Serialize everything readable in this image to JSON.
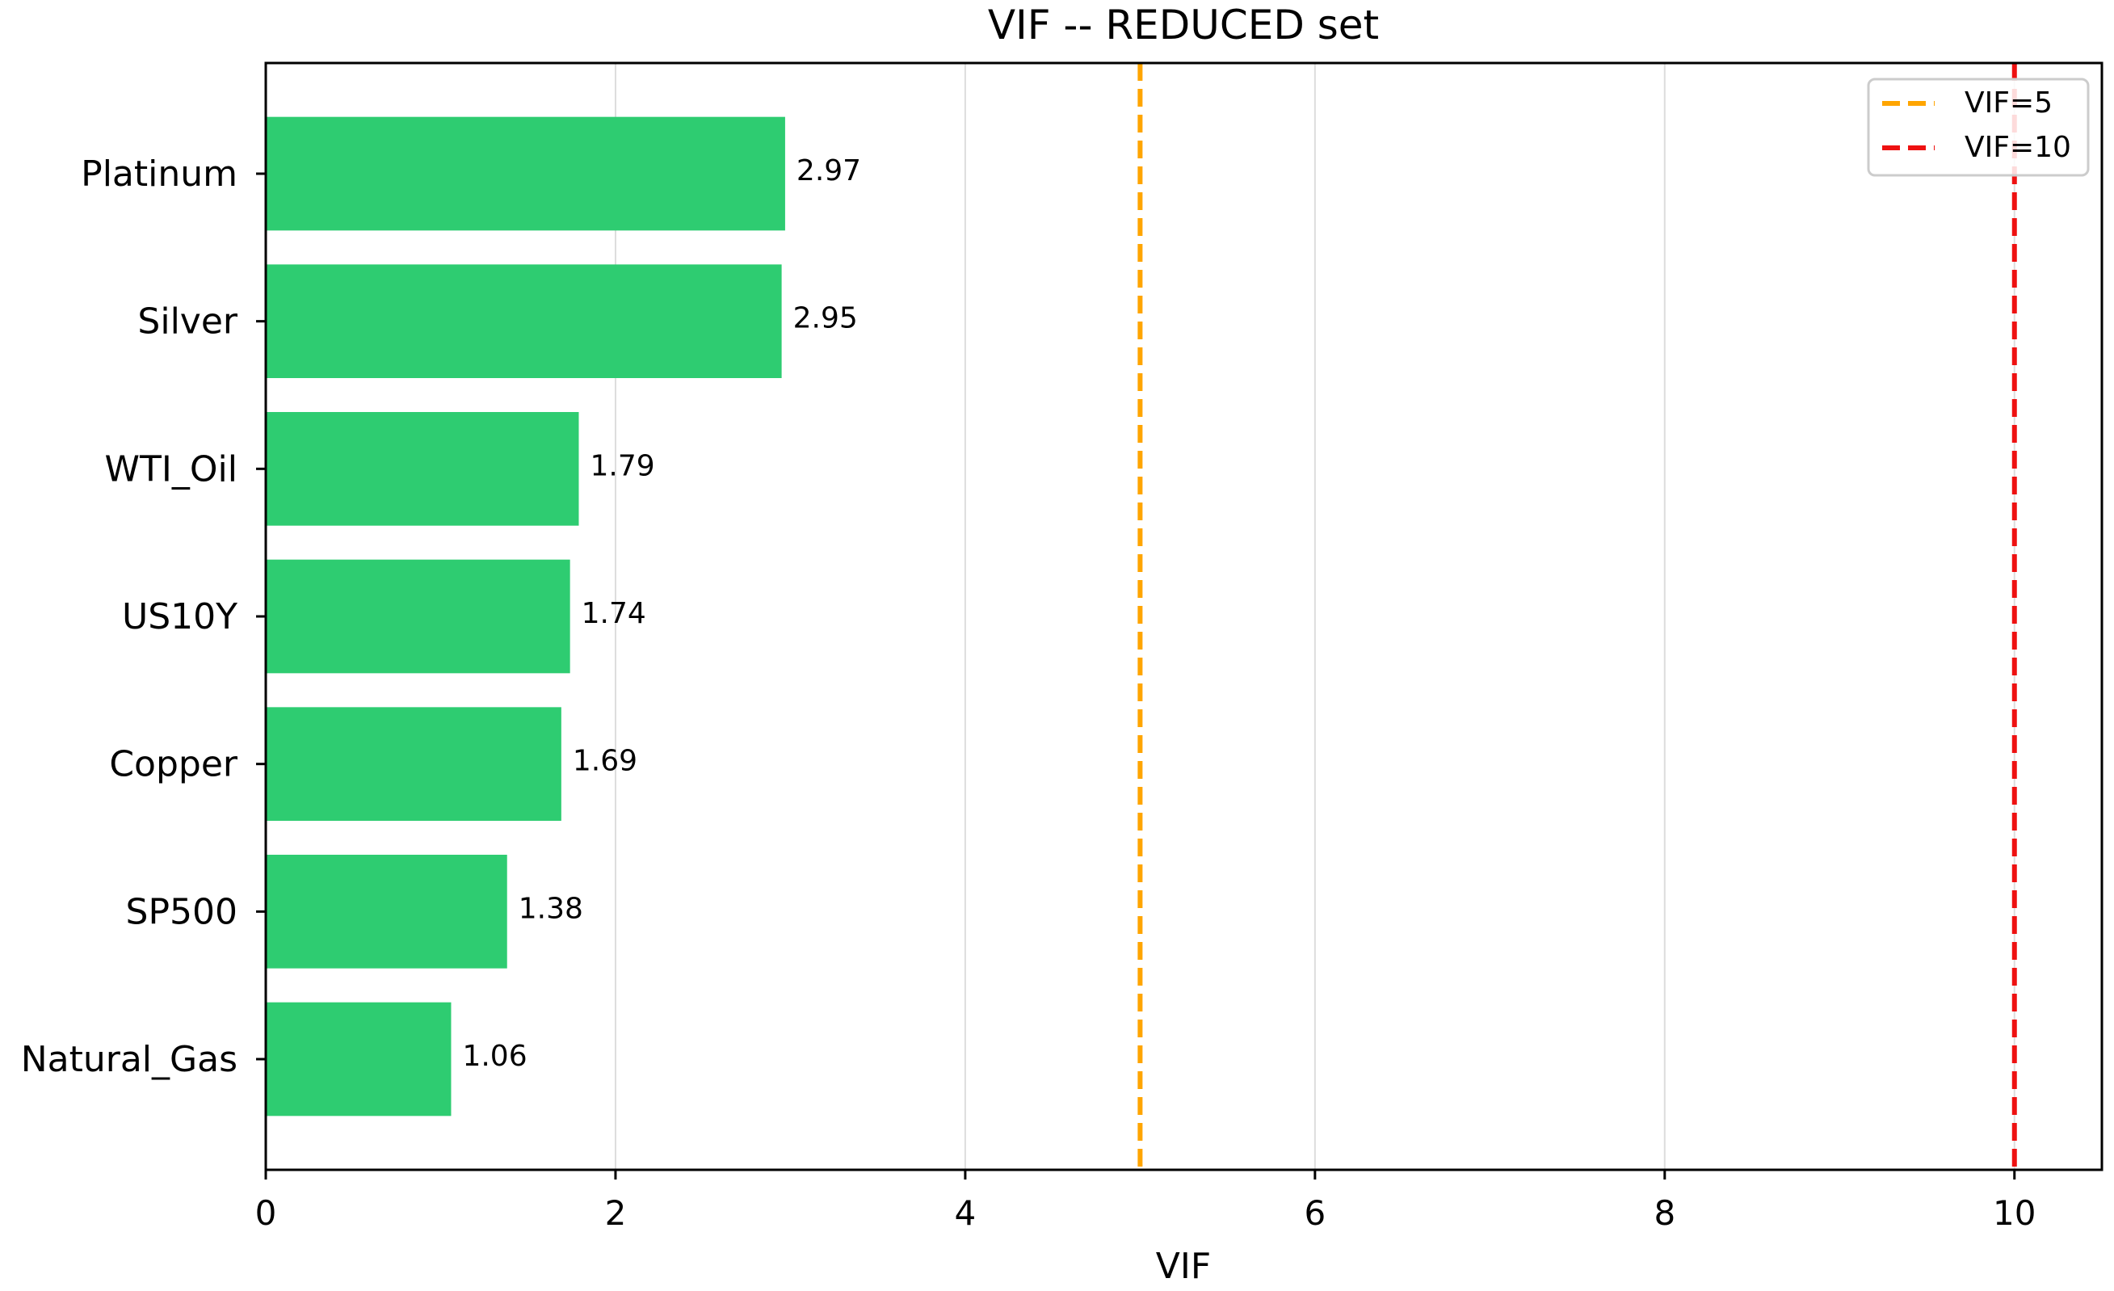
{
  "chart_data": {
    "type": "bar",
    "orientation": "horizontal",
    "title": "VIF -- REDUCED set",
    "xlabel": "VIF",
    "ylabel": "",
    "xlim": [
      0,
      10.5
    ],
    "xticks": [
      0,
      2,
      4,
      6,
      8,
      10
    ],
    "grid": "vertical",
    "categories": [
      "Platinum",
      "Silver",
      "WTI_Oil",
      "US10Y",
      "Copper",
      "SP500",
      "Natural_Gas"
    ],
    "values": [
      2.97,
      2.95,
      1.79,
      1.74,
      1.69,
      1.38,
      1.06
    ],
    "data_labels": [
      "2.97",
      "2.95",
      "1.79",
      "1.74",
      "1.69",
      "1.38",
      "1.06"
    ],
    "bar_color": "#2ecc71",
    "reference_lines": [
      {
        "name": "VIF=5",
        "value": 5,
        "color": "#ffa500",
        "style": "dashed"
      },
      {
        "name": "VIF=10",
        "value": 10,
        "color": "#ee1111",
        "style": "dashed"
      }
    ],
    "legend_position": "top-right"
  }
}
